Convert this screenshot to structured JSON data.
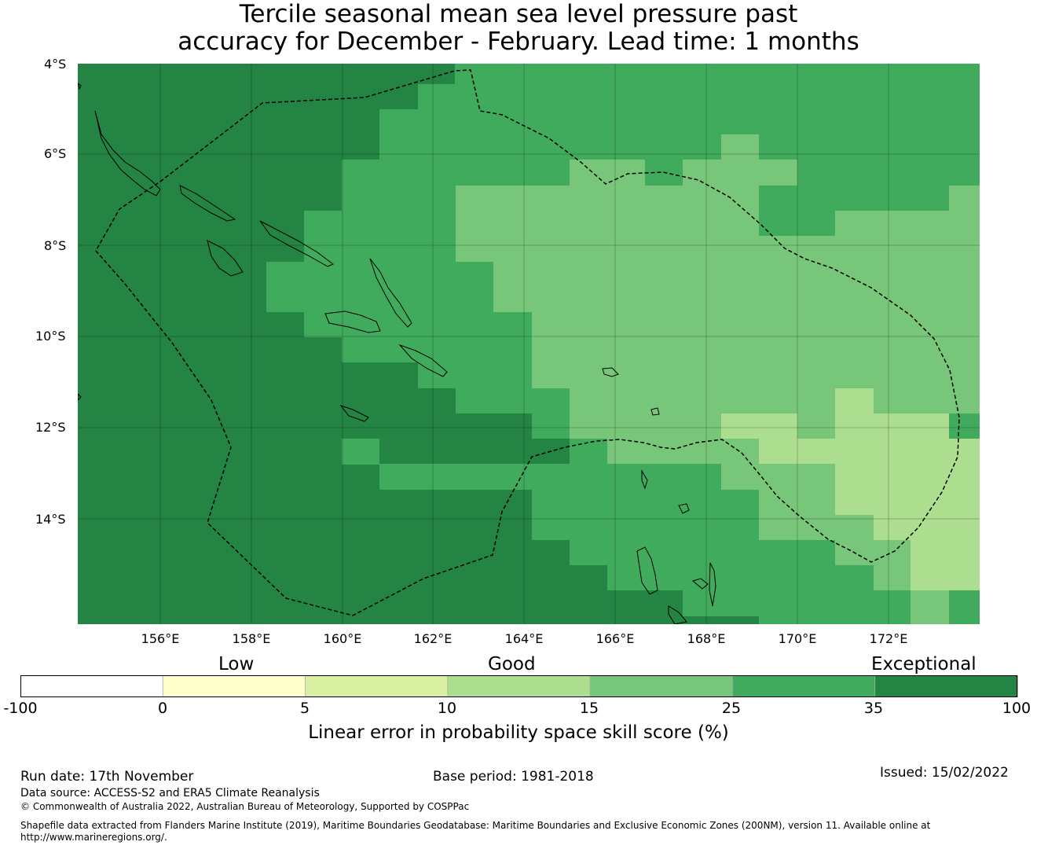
{
  "title": {
    "line1": "Tercile seasonal mean sea level pressure past",
    "line2": "accuracy for December - February. Lead time: 1 months"
  },
  "map": {
    "lat_labels": [
      "4°S",
      "6°S",
      "8°S",
      "10°S",
      "12°S",
      "14°S"
    ],
    "lon_labels": [
      "156°E",
      "158°E",
      "160°E",
      "162°E",
      "164°E",
      "166°E",
      "168°E",
      "170°E",
      "172°E"
    ],
    "lon_extent": [
      154.2,
      174.0
    ],
    "lat_extent": [
      -4.0,
      -16.3
    ],
    "features": [
      "Solomon Islands",
      "Vanuatu",
      "Santa Cruz Islands",
      "maritime boundary (EEZ, dashed)"
    ]
  },
  "colorbar": {
    "category_labels": {
      "low": "Low",
      "good": "Good",
      "exceptional": "Exceptional"
    },
    "ticks": [
      "-100",
      "0",
      "5",
      "10",
      "15",
      "25",
      "35",
      "100"
    ],
    "colors": [
      "#ffffff",
      "#ffffcc",
      "#d9f0a3",
      "#addd8e",
      "#78c679",
      "#41ab5d",
      "#238443"
    ],
    "label": "Linear error in probability space skill score (%)"
  },
  "footer": {
    "run_date": "Run date: 17th November",
    "base_period": "Base period: 1981-2018",
    "issued": "Issued: 15/02/2022",
    "data_source": "Data source: ACCESS-S2 and ERA5 Climate Reanalysis",
    "copyright": "© Commonwealth of Australia 2022, Australian Bureau of Meteorology, Supported by COSPPac",
    "shapefile_line1": "Shapefile data extracted from Flanders Marine Institute (2019), Maritime Boundaries Geodatabase: Maritime Boundaries and Exclusive Economic Zones (200NM), version 11. Available online at",
    "shapefile_line2": "http://www.marineregions.org/."
  }
}
